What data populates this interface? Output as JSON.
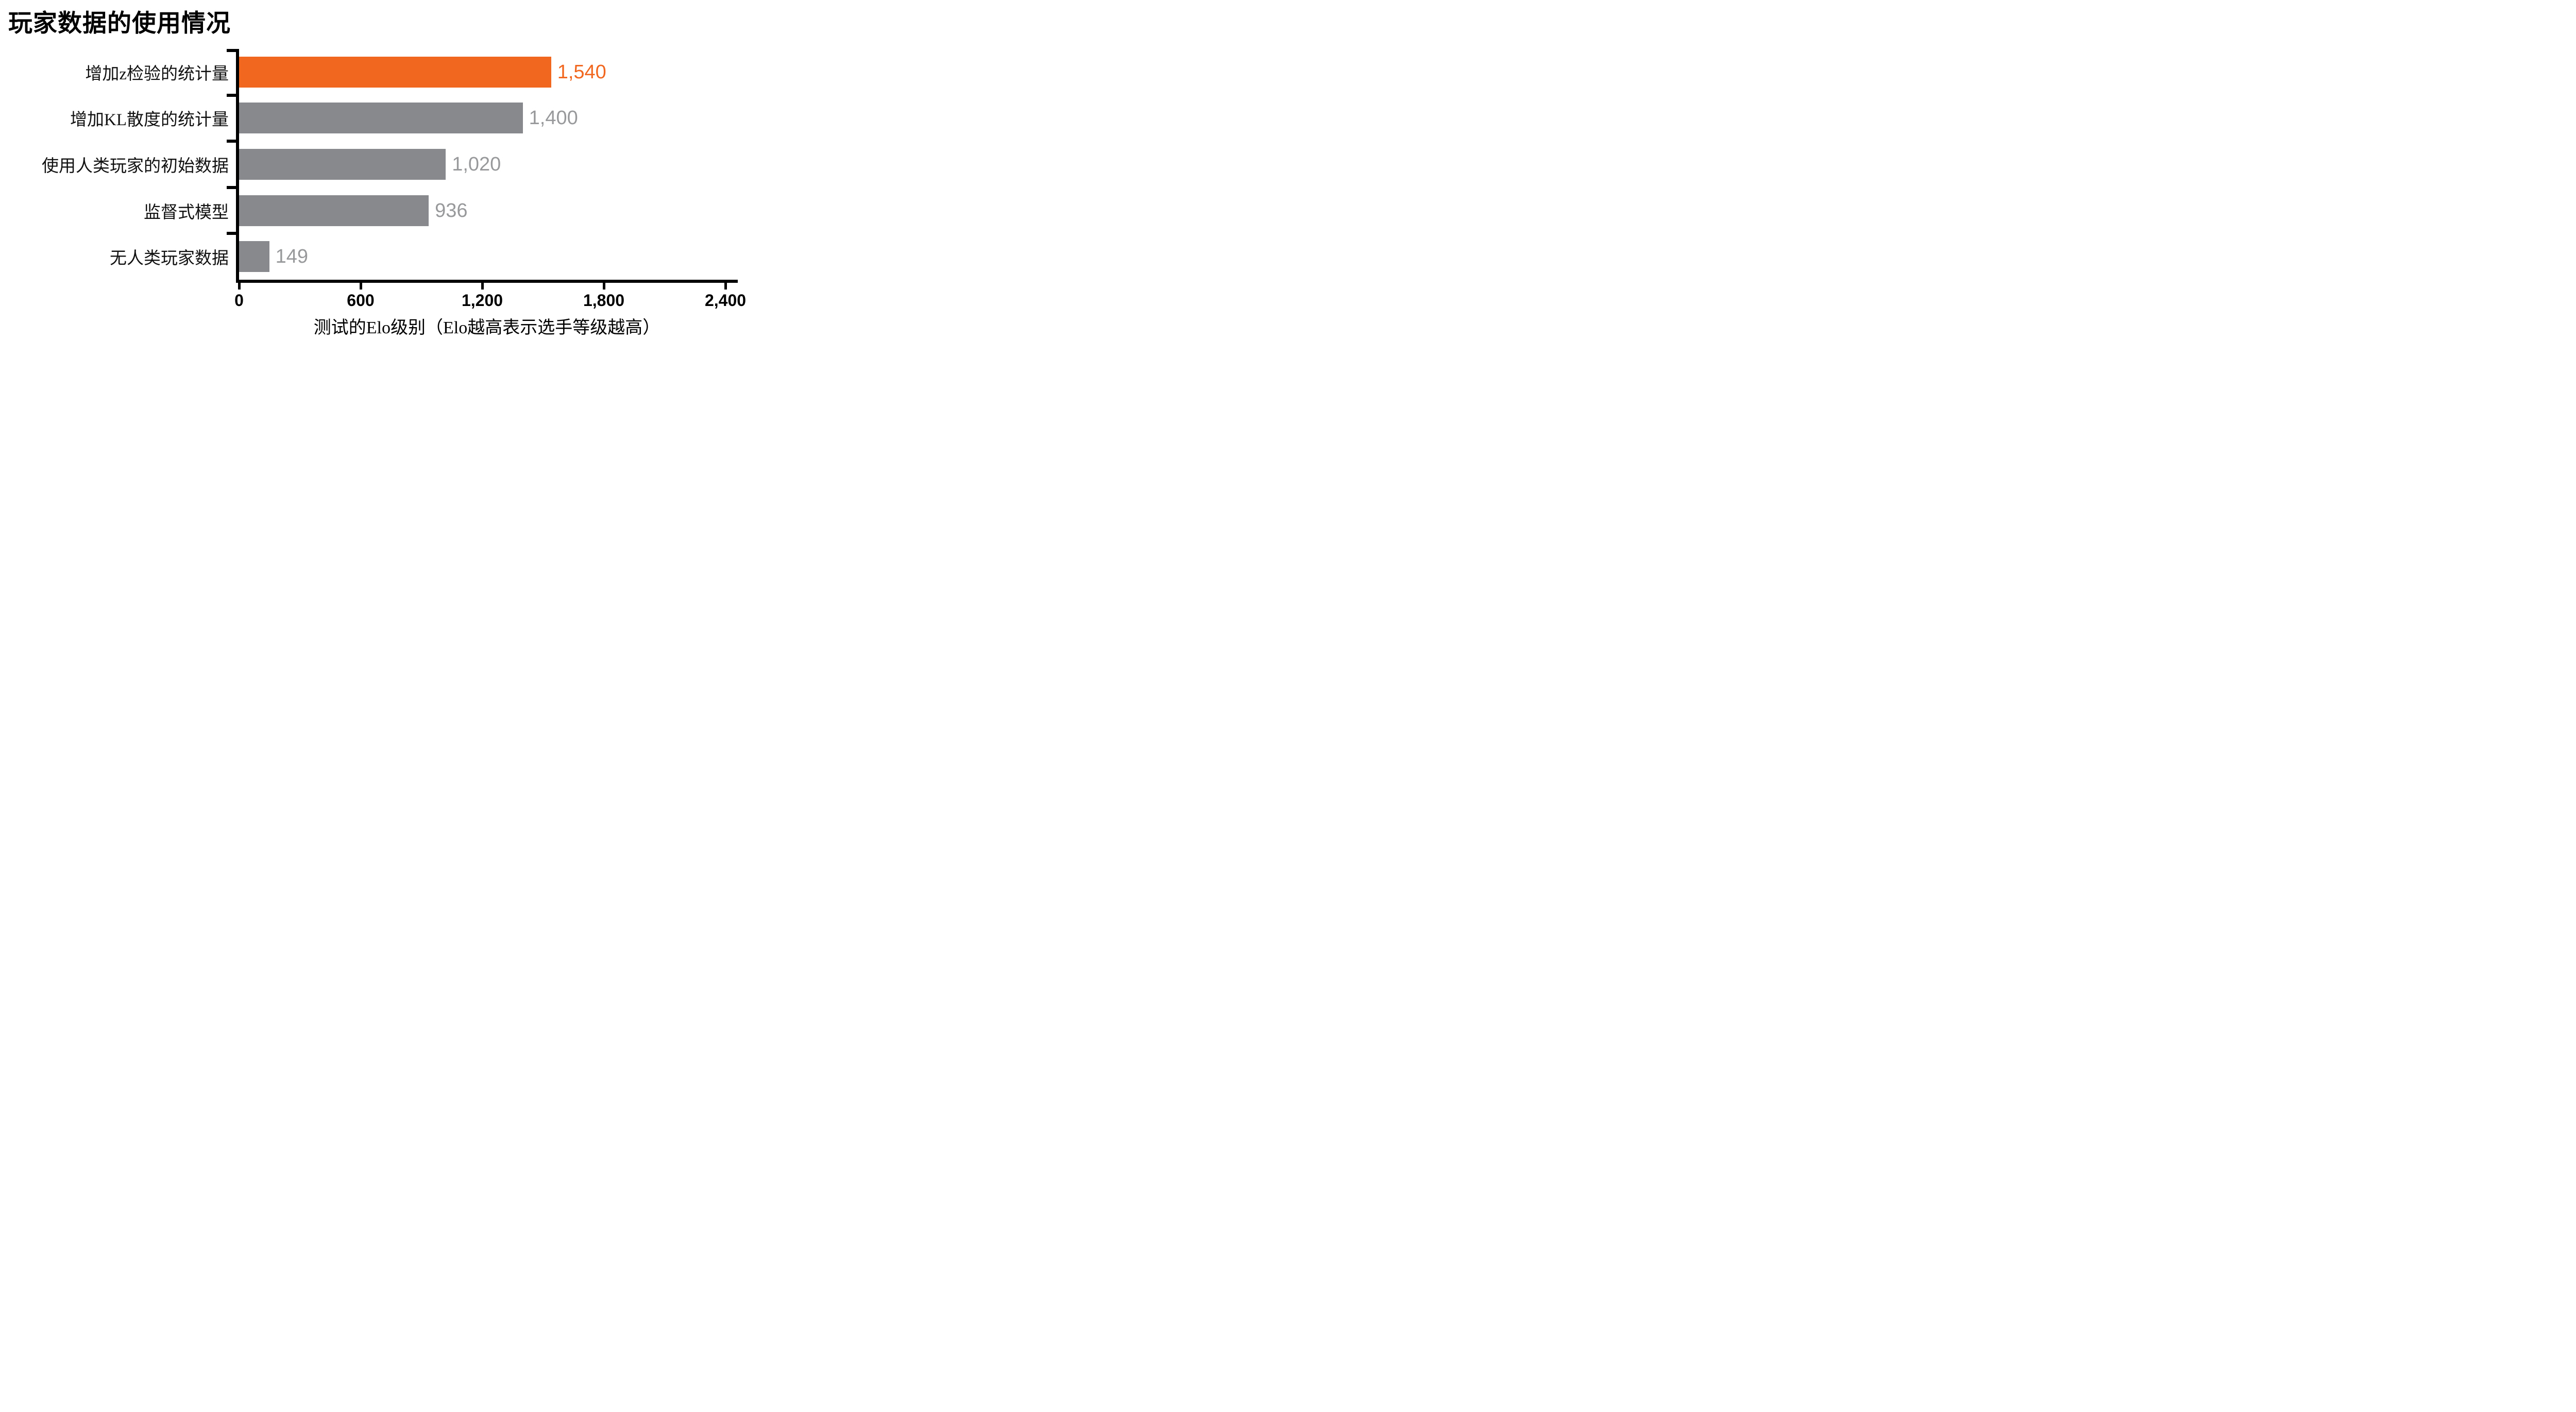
{
  "title": "玩家数据的使用情况",
  "chart_data": {
    "type": "bar",
    "orientation": "horizontal",
    "title": "玩家数据的使用情况",
    "categories": [
      "增加z检验的统计量",
      "增加KL散度的统计量",
      "使用人类玩家的初始数据",
      "监督式模型",
      "无人类玩家数据"
    ],
    "values": [
      1540,
      1400,
      1020,
      936,
      149
    ],
    "value_labels": [
      "1,540",
      "1,400",
      "1,020",
      "936",
      "149"
    ],
    "highlight_index": 0,
    "xlabel": "测试的Elo级别（Elo越高表示选手等级越高）",
    "ylabel": "",
    "xlim": [
      0,
      2400
    ],
    "xticks": [
      0,
      600,
      1200,
      1800,
      2400
    ],
    "xtick_labels": [
      "0",
      "600",
      "1,200",
      "1,800",
      "2,400"
    ],
    "grid": false,
    "legend": "none",
    "colors": {
      "highlight_bar": "#F2671F",
      "default_bar": "#87898C",
      "value_label_gray": "#97999B",
      "axis": "#000000"
    }
  }
}
